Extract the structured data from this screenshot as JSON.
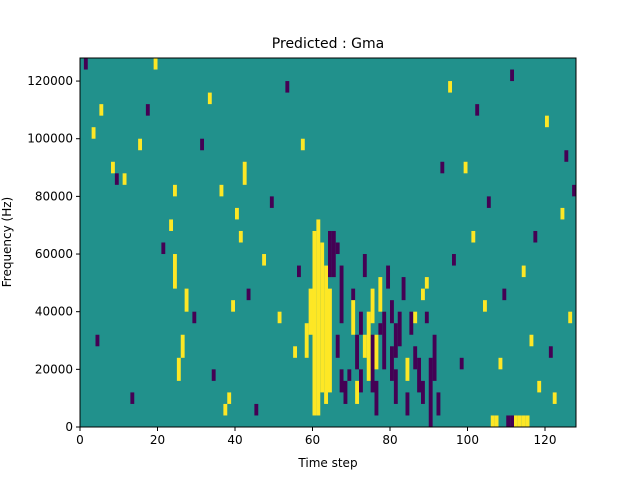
{
  "chart_data": {
    "type": "heatmap",
    "title": "Predicted : Gma",
    "xlabel": "Time step",
    "ylabel": "Frequency (Hz)",
    "xlim": [
      0,
      128
    ],
    "ylim": [
      0,
      128000
    ],
    "x_ticks": [
      0,
      20,
      40,
      60,
      80,
      100,
      120
    ],
    "y_ticks": [
      0,
      20000,
      40000,
      60000,
      80000,
      100000,
      120000
    ],
    "x_tick_labels": [
      "0",
      "20",
      "40",
      "60",
      "80",
      "100",
      "120"
    ],
    "y_tick_labels": [
      "0",
      "20000",
      "40000",
      "60000",
      "80000",
      "100000",
      "120000"
    ],
    "n_bins": 32,
    "colormap": [
      "#440154",
      "#21918c",
      "#fde725"
    ],
    "background_level": 1,
    "legend": "none",
    "grid": false,
    "note_encoding": "cells are [time_step, freq_bin_start, freq_bin_end, level]; level 0=low(purple), 2=high(yellow)",
    "cells": [
      [
        60,
        1,
        17,
        2
      ],
      [
        61,
        1,
        18,
        2
      ],
      [
        62,
        3,
        16,
        2
      ],
      [
        63,
        2,
        14,
        2
      ],
      [
        64,
        3,
        12,
        2
      ],
      [
        58,
        6,
        9,
        2
      ],
      [
        59,
        8,
        12,
        2
      ],
      [
        64,
        13,
        17,
        0
      ],
      [
        65,
        13,
        17,
        0
      ],
      [
        66,
        15,
        16,
        0
      ],
      [
        67,
        9,
        14,
        0
      ],
      [
        66,
        6,
        8,
        0
      ],
      [
        67,
        3,
        5,
        0
      ],
      [
        68,
        2,
        4,
        0
      ],
      [
        69,
        4,
        5,
        0
      ],
      [
        70,
        11,
        12,
        0
      ],
      [
        71,
        5,
        8,
        0
      ],
      [
        72,
        3,
        5,
        0
      ],
      [
        72,
        8,
        10,
        0
      ],
      [
        73,
        13,
        15,
        0
      ],
      [
        75,
        3,
        8,
        0
      ],
      [
        76,
        1,
        4,
        0
      ],
      [
        77,
        8,
        9,
        0
      ],
      [
        73,
        6,
        8,
        2
      ],
      [
        74,
        4,
        10,
        2
      ],
      [
        75,
        9,
        12,
        2
      ],
      [
        76,
        5,
        8,
        2
      ],
      [
        77,
        10,
        13,
        2
      ],
      [
        71,
        2,
        4,
        2
      ],
      [
        70,
        8,
        11,
        2
      ],
      [
        78,
        5,
        10,
        0
      ],
      [
        79,
        12,
        14,
        0
      ],
      [
        80,
        4,
        7,
        0
      ],
      [
        80,
        9,
        11,
        0
      ],
      [
        81,
        2,
        5,
        0
      ],
      [
        81,
        6,
        9,
        0
      ],
      [
        82,
        7,
        10,
        0
      ],
      [
        83,
        11,
        13,
        0
      ],
      [
        84,
        1,
        3,
        0
      ],
      [
        85,
        8,
        10,
        0
      ],
      [
        86,
        5,
        7,
        0
      ],
      [
        87,
        3,
        6,
        0
      ],
      [
        88,
        2,
        4,
        0
      ],
      [
        89,
        9,
        10,
        0
      ],
      [
        90,
        0,
        6,
        0
      ],
      [
        91,
        4,
        8,
        0
      ],
      [
        92,
        1,
        3,
        0
      ],
      [
        86,
        9,
        10,
        2
      ],
      [
        88,
        11,
        12,
        2
      ],
      [
        84,
        4,
        6,
        2
      ],
      [
        89,
        12,
        13,
        2
      ],
      [
        110,
        0,
        1,
        0
      ],
      [
        111,
        0,
        1,
        0
      ],
      [
        112,
        0,
        1,
        2
      ],
      [
        113,
        0,
        1,
        2
      ],
      [
        114,
        0,
        1,
        2
      ],
      [
        115,
        0,
        1,
        2
      ],
      [
        106,
        0,
        1,
        2
      ],
      [
        107,
        0,
        1,
        2
      ],
      [
        25,
        4,
        6,
        2
      ],
      [
        26,
        6,
        8,
        2
      ],
      [
        27,
        10,
        12,
        2
      ],
      [
        24,
        12,
        15,
        2
      ],
      [
        23,
        17,
        18,
        2
      ],
      [
        24,
        20,
        21,
        2
      ],
      [
        37,
        1,
        2,
        2
      ],
      [
        38,
        2,
        3,
        2
      ],
      [
        39,
        10,
        11,
        2
      ],
      [
        40,
        18,
        19,
        2
      ],
      [
        41,
        16,
        17,
        2
      ],
      [
        42,
        21,
        23,
        2
      ],
      [
        3,
        25,
        26,
        2
      ],
      [
        5,
        27,
        28,
        2
      ],
      [
        8,
        22,
        23,
        2
      ],
      [
        11,
        21,
        22,
        2
      ],
      [
        15,
        24,
        25,
        2
      ],
      [
        19,
        31,
        32,
        2
      ],
      [
        33,
        28,
        29,
        2
      ],
      [
        36,
        20,
        21,
        2
      ],
      [
        47,
        14,
        15,
        2
      ],
      [
        51,
        9,
        10,
        2
      ],
      [
        55,
        6,
        7,
        2
      ],
      [
        57,
        24,
        25,
        2
      ],
      [
        95,
        29,
        30,
        2
      ],
      [
        99,
        22,
        23,
        2
      ],
      [
        101,
        16,
        17,
        2
      ],
      [
        104,
        10,
        11,
        2
      ],
      [
        108,
        5,
        6,
        2
      ],
      [
        114,
        13,
        14,
        2
      ],
      [
        118,
        3,
        4,
        2
      ],
      [
        120,
        26,
        27,
        2
      ],
      [
        124,
        18,
        19,
        2
      ],
      [
        126,
        9,
        10,
        2
      ],
      [
        122,
        2,
        3,
        2
      ],
      [
        116,
        7,
        8,
        2
      ],
      [
        1,
        31,
        32,
        0
      ],
      [
        4,
        7,
        8,
        0
      ],
      [
        9,
        21,
        22,
        0
      ],
      [
        13,
        2,
        3,
        0
      ],
      [
        17,
        27,
        28,
        0
      ],
      [
        21,
        15,
        16,
        0
      ],
      [
        29,
        9,
        10,
        0
      ],
      [
        31,
        24,
        25,
        0
      ],
      [
        34,
        4,
        5,
        0
      ],
      [
        43,
        11,
        12,
        0
      ],
      [
        45,
        1,
        2,
        0
      ],
      [
        49,
        19,
        20,
        0
      ],
      [
        53,
        29,
        30,
        0
      ],
      [
        56,
        13,
        14,
        0
      ],
      [
        93,
        22,
        23,
        0
      ],
      [
        96,
        14,
        15,
        0
      ],
      [
        98,
        5,
        6,
        0
      ],
      [
        102,
        27,
        28,
        0
      ],
      [
        105,
        19,
        20,
        0
      ],
      [
        109,
        11,
        12,
        0
      ],
      [
        111,
        30,
        31,
        0
      ],
      [
        117,
        16,
        17,
        0
      ],
      [
        121,
        6,
        7,
        0
      ],
      [
        125,
        23,
        24,
        0
      ],
      [
        127,
        20,
        21,
        0
      ]
    ]
  }
}
